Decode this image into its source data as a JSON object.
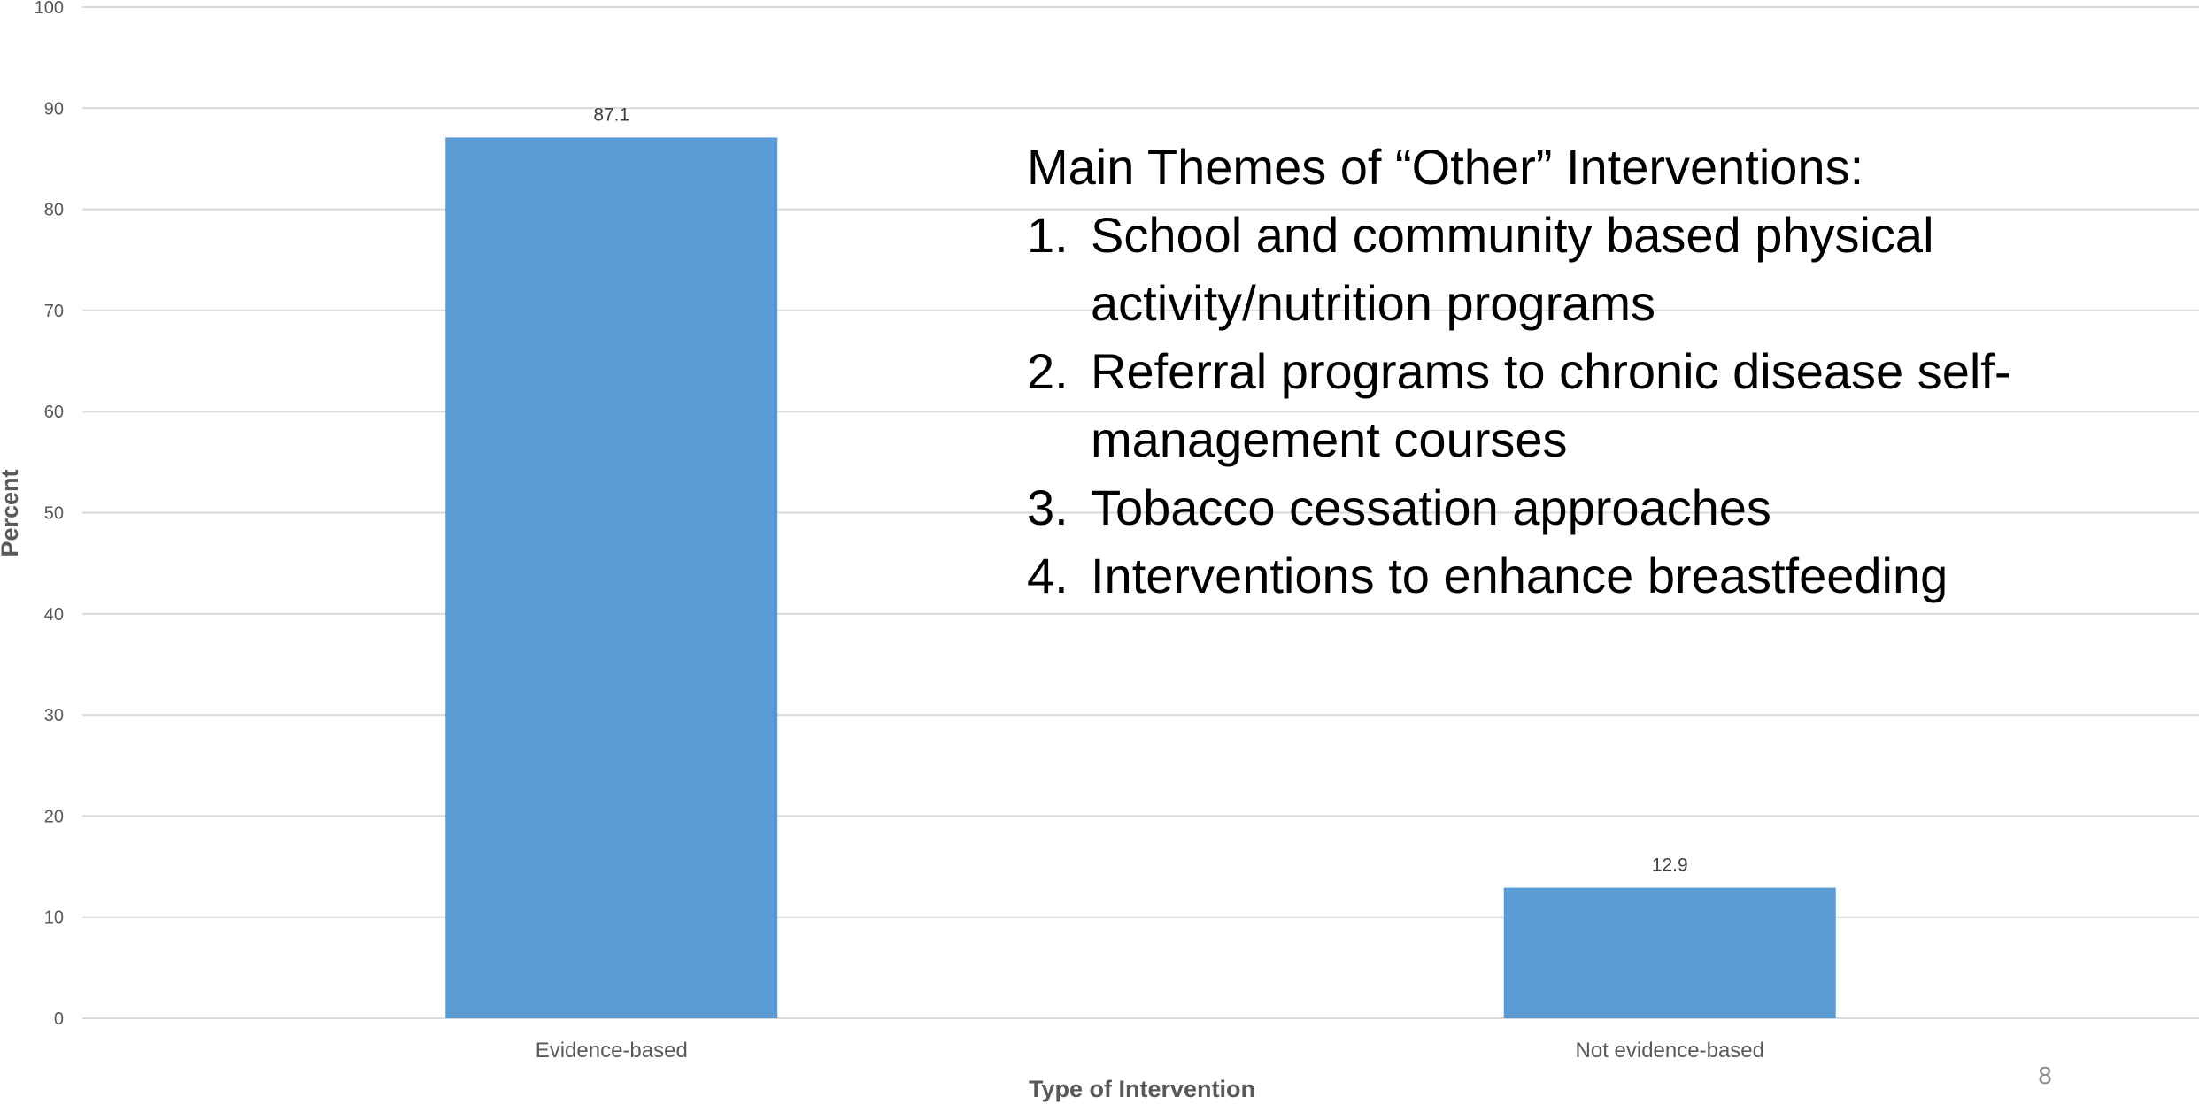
{
  "chart_data": {
    "type": "bar",
    "categories": [
      "Evidence-based",
      "Not evidence-based"
    ],
    "values": [
      87.1,
      12.9
    ],
    "data_labels": [
      "87.1",
      "12.9"
    ],
    "xlabel": "Type of Intervention",
    "ylabel": "Percent",
    "ylim": [
      0,
      100
    ],
    "yticks": [
      "0",
      "10",
      "20",
      "30",
      "40",
      "50",
      "60",
      "70",
      "80",
      "90",
      "100"
    ],
    "grid": true,
    "bar_color": "#5B9BD5"
  },
  "themes": {
    "heading": "Main Themes of “Other” Interventions:",
    "items": [
      {
        "num": "1.",
        "text": "School and community based physical activity/nutrition programs"
      },
      {
        "num": "2.",
        "text": "Referral programs to chronic disease self-management courses"
      },
      {
        "num": "3.",
        "text": "Tobacco cessation approaches"
      },
      {
        "num": "4.",
        "text": "Interventions to enhance breastfeeding"
      }
    ]
  },
  "page_number": "8"
}
